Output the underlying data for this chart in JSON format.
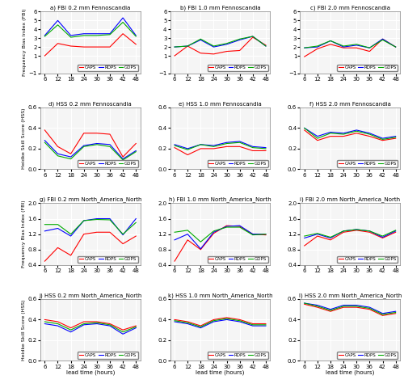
{
  "x": [
    6,
    12,
    18,
    24,
    30,
    36,
    42,
    48
  ],
  "panels": [
    {
      "label": "a) FBI 0.2 mm Fennoscandia",
      "ylabel": "Frequency Bias Index (FBI)",
      "ylim": [
        -1,
        6
      ],
      "yticks": [
        -1,
        1,
        2,
        3,
        4,
        5,
        6
      ],
      "CAPS": [
        1.0,
        2.4,
        2.1,
        2.0,
        2.0,
        2.0,
        3.5,
        2.3
      ],
      "RDPS": [
        3.3,
        5.0,
        3.3,
        3.5,
        3.5,
        3.5,
        5.3,
        3.3
      ],
      "GDPS": [
        3.2,
        4.5,
        3.1,
        3.3,
        3.3,
        3.4,
        4.8,
        3.2
      ]
    },
    {
      "label": "b) FBI 1.0 mm Fennoscandia",
      "ylabel": "",
      "ylim": [
        -1,
        6
      ],
      "yticks": [
        -1,
        1,
        2,
        3,
        4,
        5,
        6
      ],
      "CAPS": [
        1.0,
        2.1,
        1.3,
        1.2,
        1.5,
        1.6,
        3.1,
        2.2
      ],
      "RDPS": [
        2.0,
        2.1,
        2.8,
        2.0,
        2.3,
        2.8,
        3.2,
        2.1
      ],
      "GDPS": [
        2.0,
        2.1,
        2.9,
        2.1,
        2.4,
        2.9,
        3.2,
        2.1
      ]
    },
    {
      "label": "c) FBI 2.0 mm Fennoscandia",
      "ylabel": "",
      "ylim": [
        -1,
        6
      ],
      "yticks": [
        -1,
        1,
        2,
        3,
        4,
        5,
        6
      ],
      "CAPS": [
        0.9,
        1.8,
        2.3,
        1.9,
        1.9,
        1.5,
        2.9,
        2.0
      ],
      "RDPS": [
        1.9,
        2.0,
        2.7,
        2.0,
        2.2,
        1.9,
        2.9,
        2.0
      ],
      "GDPS": [
        1.9,
        2.1,
        2.7,
        2.1,
        2.3,
        1.9,
        2.8,
        2.0
      ]
    },
    {
      "label": "d) HSS 0.2 mm Fennoscandia",
      "ylabel": "Heidke Skill Score (HSS)",
      "ylim": [
        0.0,
        0.6
      ],
      "yticks": [
        0.0,
        0.2,
        0.4,
        0.6
      ],
      "CAPS": [
        0.38,
        0.22,
        0.15,
        0.35,
        0.35,
        0.34,
        0.12,
        0.25
      ],
      "RDPS": [
        0.28,
        0.15,
        0.12,
        0.23,
        0.25,
        0.24,
        0.1,
        0.18
      ],
      "GDPS": [
        0.26,
        0.13,
        0.1,
        0.22,
        0.24,
        0.22,
        0.09,
        0.17
      ]
    },
    {
      "label": "e) HSS 1.0 mm Fennoscandia",
      "ylabel": "",
      "ylim": [
        0.0,
        0.6
      ],
      "yticks": [
        0.0,
        0.2,
        0.4,
        0.6
      ],
      "CAPS": [
        0.21,
        0.14,
        0.2,
        0.2,
        0.22,
        0.22,
        0.18,
        0.18
      ],
      "RDPS": [
        0.24,
        0.2,
        0.24,
        0.23,
        0.26,
        0.27,
        0.22,
        0.21
      ],
      "GDPS": [
        0.23,
        0.19,
        0.24,
        0.22,
        0.25,
        0.26,
        0.21,
        0.2
      ]
    },
    {
      "label": "f) HSS 2.0 mm Fennoscandia",
      "ylabel": "",
      "ylim": [
        0.0,
        0.6
      ],
      "yticks": [
        0.0,
        0.2,
        0.4,
        0.6
      ],
      "CAPS": [
        0.38,
        0.28,
        0.32,
        0.32,
        0.35,
        0.32,
        0.28,
        0.3
      ],
      "RDPS": [
        0.4,
        0.32,
        0.36,
        0.35,
        0.38,
        0.35,
        0.3,
        0.32
      ],
      "GDPS": [
        0.4,
        0.3,
        0.35,
        0.34,
        0.37,
        0.34,
        0.29,
        0.31
      ]
    },
    {
      "label": "g) FBI 0.2 mm North_America_North",
      "ylabel": "Frequency Bias Index (FBI)",
      "ylim": [
        0.4,
        2.0
      ],
      "yticks": [
        0.4,
        0.8,
        1.2,
        1.6,
        2.0
      ],
      "CAPS": [
        0.5,
        0.85,
        0.65,
        1.2,
        1.25,
        1.25,
        0.95,
        1.15
      ],
      "RDPS": [
        1.28,
        1.35,
        1.15,
        1.55,
        1.6,
        1.6,
        1.18,
        1.6
      ],
      "GDPS": [
        1.45,
        1.45,
        1.2,
        1.55,
        1.58,
        1.57,
        1.2,
        1.5
      ]
    },
    {
      "label": "h) FBI 1.0 mm North_America_North",
      "ylabel": "",
      "ylim": [
        0.4,
        2.0
      ],
      "yticks": [
        0.4,
        0.8,
        1.2,
        1.6,
        2.0
      ],
      "CAPS": [
        0.5,
        1.05,
        0.8,
        1.22,
        1.42,
        1.4,
        1.2,
        1.18
      ],
      "RDPS": [
        1.05,
        1.2,
        0.82,
        1.25,
        1.4,
        1.42,
        1.2,
        1.2
      ],
      "GDPS": [
        1.25,
        1.3,
        1.0,
        1.28,
        1.38,
        1.38,
        1.18,
        1.2
      ]
    },
    {
      "label": "i) FBI 2.0 mm North_America_North",
      "ylabel": "",
      "ylim": [
        0.4,
        2.0
      ],
      "yticks": [
        0.4,
        0.8,
        1.2,
        1.6,
        2.0
      ],
      "CAPS": [
        0.9,
        1.15,
        1.05,
        1.25,
        1.3,
        1.25,
        1.1,
        1.25
      ],
      "RDPS": [
        1.1,
        1.2,
        1.1,
        1.28,
        1.32,
        1.28,
        1.12,
        1.28
      ],
      "GDPS": [
        1.15,
        1.22,
        1.12,
        1.28,
        1.32,
        1.28,
        1.15,
        1.3
      ]
    },
    {
      "label": "j) HSS 0.2 mm North_America_North",
      "ylabel": "Heidke Skill Score (HSS)",
      "ylim": [
        0.0,
        0.6
      ],
      "yticks": [
        0.0,
        0.2,
        0.4,
        0.6
      ],
      "CAPS": [
        0.4,
        0.38,
        0.32,
        0.38,
        0.38,
        0.36,
        0.3,
        0.34
      ],
      "RDPS": [
        0.36,
        0.34,
        0.28,
        0.35,
        0.36,
        0.34,
        0.26,
        0.32
      ],
      "GDPS": [
        0.38,
        0.36,
        0.3,
        0.36,
        0.37,
        0.35,
        0.28,
        0.33
      ]
    },
    {
      "label": "k) HSS 1.0 mm North_America_North",
      "ylabel": "",
      "ylim": [
        0.0,
        0.6
      ],
      "yticks": [
        0.0,
        0.2,
        0.4,
        0.6
      ],
      "CAPS": [
        0.4,
        0.38,
        0.34,
        0.4,
        0.42,
        0.4,
        0.36,
        0.36
      ],
      "RDPS": [
        0.38,
        0.36,
        0.32,
        0.38,
        0.4,
        0.38,
        0.34,
        0.34
      ],
      "GDPS": [
        0.39,
        0.37,
        0.33,
        0.39,
        0.41,
        0.39,
        0.35,
        0.35
      ]
    },
    {
      "label": "l) HSS 2.0 mm North_America_North",
      "ylabel": "",
      "ylim": [
        0.0,
        0.6
      ],
      "yticks": [
        0.0,
        0.2,
        0.4,
        0.6
      ],
      "CAPS": [
        0.55,
        0.52,
        0.48,
        0.52,
        0.52,
        0.5,
        0.44,
        0.46
      ],
      "RDPS": [
        0.56,
        0.54,
        0.5,
        0.54,
        0.54,
        0.52,
        0.46,
        0.48
      ],
      "GDPS": [
        0.56,
        0.53,
        0.49,
        0.53,
        0.53,
        0.51,
        0.45,
        0.47
      ]
    }
  ],
  "colors": {
    "CAPS": "#FF0000",
    "RDPS": "#0000FF",
    "GDPS": "#00AA00"
  },
  "x_label": "lead time (hours)",
  "bg_color": "#F5F5F5",
  "grid_color": "#FFFFFF"
}
